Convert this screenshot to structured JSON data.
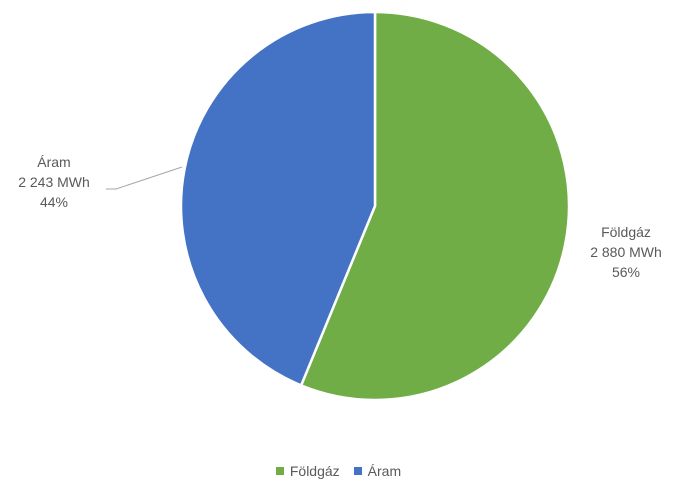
{
  "chart_data": {
    "type": "pie",
    "categories": [
      "Földgáz",
      "Áram"
    ],
    "values": [
      2880,
      2243
    ],
    "unit": "MWh",
    "slices": [
      {
        "name": "Földgáz",
        "value_label": "2 880 MWh",
        "percent_label": "56%",
        "color": "#70ad47"
      },
      {
        "name": "Áram",
        "value_label": "2 243 MWh",
        "percent_label": "44%",
        "color": "#4472c4"
      }
    ],
    "legend": {
      "position": "bottom",
      "items": [
        "Földgáz",
        "Áram"
      ]
    }
  }
}
